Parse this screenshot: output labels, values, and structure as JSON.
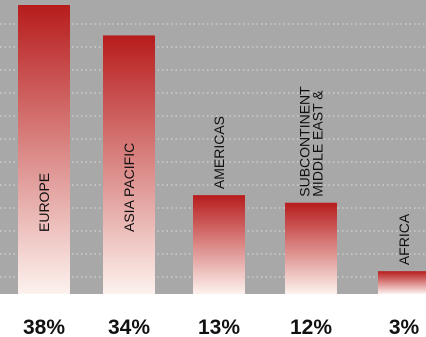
{
  "chart_data": {
    "type": "bar",
    "categories": [
      "EUROPE",
      "ASIA PACIFIC",
      "AMERICAS",
      "MIDDLE EAST & SUBCONTINENT",
      "AFRICA"
    ],
    "category_lines": [
      [
        "EUROPE"
      ],
      [
        "ASIA PACIFIC"
      ],
      [
        "AMERICAS"
      ],
      [
        "MIDDLE EAST &",
        "SUBCONTINENT"
      ],
      [
        "AFRICA"
      ]
    ],
    "values": [
      38,
      34,
      13,
      12,
      3
    ],
    "value_labels": [
      "38%",
      "34%",
      "13%",
      "12%",
      "3%"
    ],
    "unit": "%",
    "grid": true,
    "title": "",
    "xlabel": "",
    "ylabel": ""
  },
  "colors": {
    "plot_background": "#a8a8a8",
    "gridline": "#d4d4d4",
    "bar_top": "#b71c1c",
    "bar_bottom": "#fdf2ee",
    "bar_label": "#111111",
    "value_label": "#111111"
  }
}
